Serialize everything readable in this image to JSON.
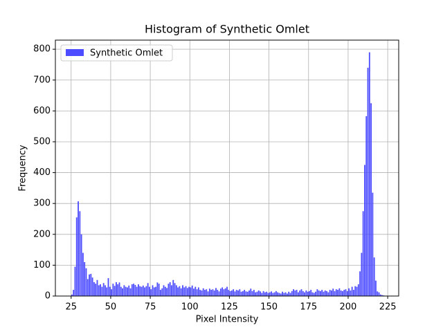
{
  "chart_data": {
    "type": "histogram",
    "title": "Histogram of Synthetic Omlet",
    "xlabel": "Pixel Intensity",
    "ylabel": "Frequency",
    "bins": [
      25,
      26,
      27,
      28,
      29,
      30,
      31,
      32,
      33,
      34,
      35,
      36,
      37,
      38,
      39,
      40,
      41,
      42,
      43,
      44,
      45,
      46,
      47,
      48,
      49,
      50,
      51,
      52,
      53,
      54,
      55,
      56,
      57,
      58,
      59,
      60,
      61,
      62,
      63,
      64,
      65,
      66,
      67,
      68,
      69,
      70,
      71,
      72,
      73,
      74,
      75,
      76,
      77,
      78,
      79,
      80,
      81,
      82,
      83,
      84,
      85,
      86,
      87,
      88,
      89,
      90,
      91,
      92,
      93,
      94,
      95,
      96,
      97,
      98,
      99,
      100,
      101,
      102,
      103,
      104,
      105,
      106,
      107,
      108,
      109,
      110,
      111,
      112,
      113,
      114,
      115,
      116,
      117,
      118,
      119,
      120,
      121,
      122,
      123,
      124,
      125,
      126,
      127,
      128,
      129,
      130,
      131,
      132,
      133,
      134,
      135,
      136,
      137,
      138,
      139,
      140,
      141,
      142,
      143,
      144,
      145,
      146,
      147,
      148,
      149,
      150,
      151,
      152,
      153,
      154,
      155,
      156,
      157,
      158,
      159,
      160,
      161,
      162,
      163,
      164,
      165,
      166,
      167,
      168,
      169,
      170,
      171,
      172,
      173,
      174,
      175,
      176,
      177,
      178,
      179,
      180,
      181,
      182,
      183,
      184,
      185,
      186,
      187,
      188,
      189,
      190,
      191,
      192,
      193,
      194,
      195,
      196,
      197,
      198,
      199,
      200,
      201,
      202,
      203,
      204,
      205,
      206,
      207,
      208,
      209,
      210,
      211,
      212,
      213,
      214,
      215,
      216,
      217,
      218,
      219,
      220,
      221,
      222,
      223,
      224
    ],
    "series": [
      {
        "name": "Synthetic Omlet",
        "color": "#4d4dff",
        "values": [
          5,
          20,
          95,
          255,
          307,
          275,
          200,
          140,
          110,
          90,
          55,
          70,
          72,
          60,
          45,
          40,
          52,
          35,
          38,
          30,
          42,
          35,
          28,
          58,
          30,
          22,
          40,
          33,
          45,
          38,
          44,
          30,
          25,
          35,
          30,
          28,
          34,
          25,
          38,
          40,
          36,
          30,
          38,
          32,
          30,
          34,
          28,
          32,
          42,
          30,
          22,
          35,
          28,
          30,
          44,
          40,
          20,
          25,
          35,
          30,
          26,
          40,
          45,
          35,
          52,
          42,
          35,
          28,
          32,
          25,
          35,
          28,
          32,
          26,
          30,
          28,
          34,
          24,
          30,
          22,
          28,
          20,
          18,
          25,
          20,
          22,
          15,
          24,
          20,
          22,
          18,
          26,
          20,
          15,
          24,
          28,
          22,
          25,
          30,
          20,
          16,
          18,
          22,
          15,
          20,
          18,
          22,
          14,
          16,
          20,
          15,
          14,
          18,
          24,
          16,
          20,
          12,
          14,
          18,
          15,
          10,
          16,
          12,
          14,
          10,
          12,
          15,
          10,
          12,
          16,
          12,
          10,
          8,
          14,
          10,
          12,
          8,
          14,
          10,
          16,
          22,
          18,
          20,
          12,
          18,
          22,
          16,
          12,
          18,
          14,
          16,
          20,
          12,
          10,
          14,
          22,
          18,
          16,
          20,
          14,
          18,
          16,
          12,
          20,
          18,
          24,
          16,
          22,
          20,
          25,
          18,
          16,
          20,
          22,
          16,
          25,
          18,
          30,
          20,
          32,
          30,
          38,
          80,
          140,
          275,
          425,
          583,
          740,
          790,
          625,
          335,
          125,
          50,
          15,
          12,
          5,
          3,
          2,
          1
        ]
      }
    ],
    "xlim": [
      15.05,
      231.95
    ],
    "xticks": [
      25,
      50,
      75,
      100,
      125,
      150,
      175,
      200,
      225
    ],
    "ylim": [
      0,
      829.5
    ],
    "yticks": [
      0,
      100,
      200,
      300,
      400,
      500,
      600,
      700,
      800
    ],
    "grid": true,
    "legend": "upper left"
  }
}
